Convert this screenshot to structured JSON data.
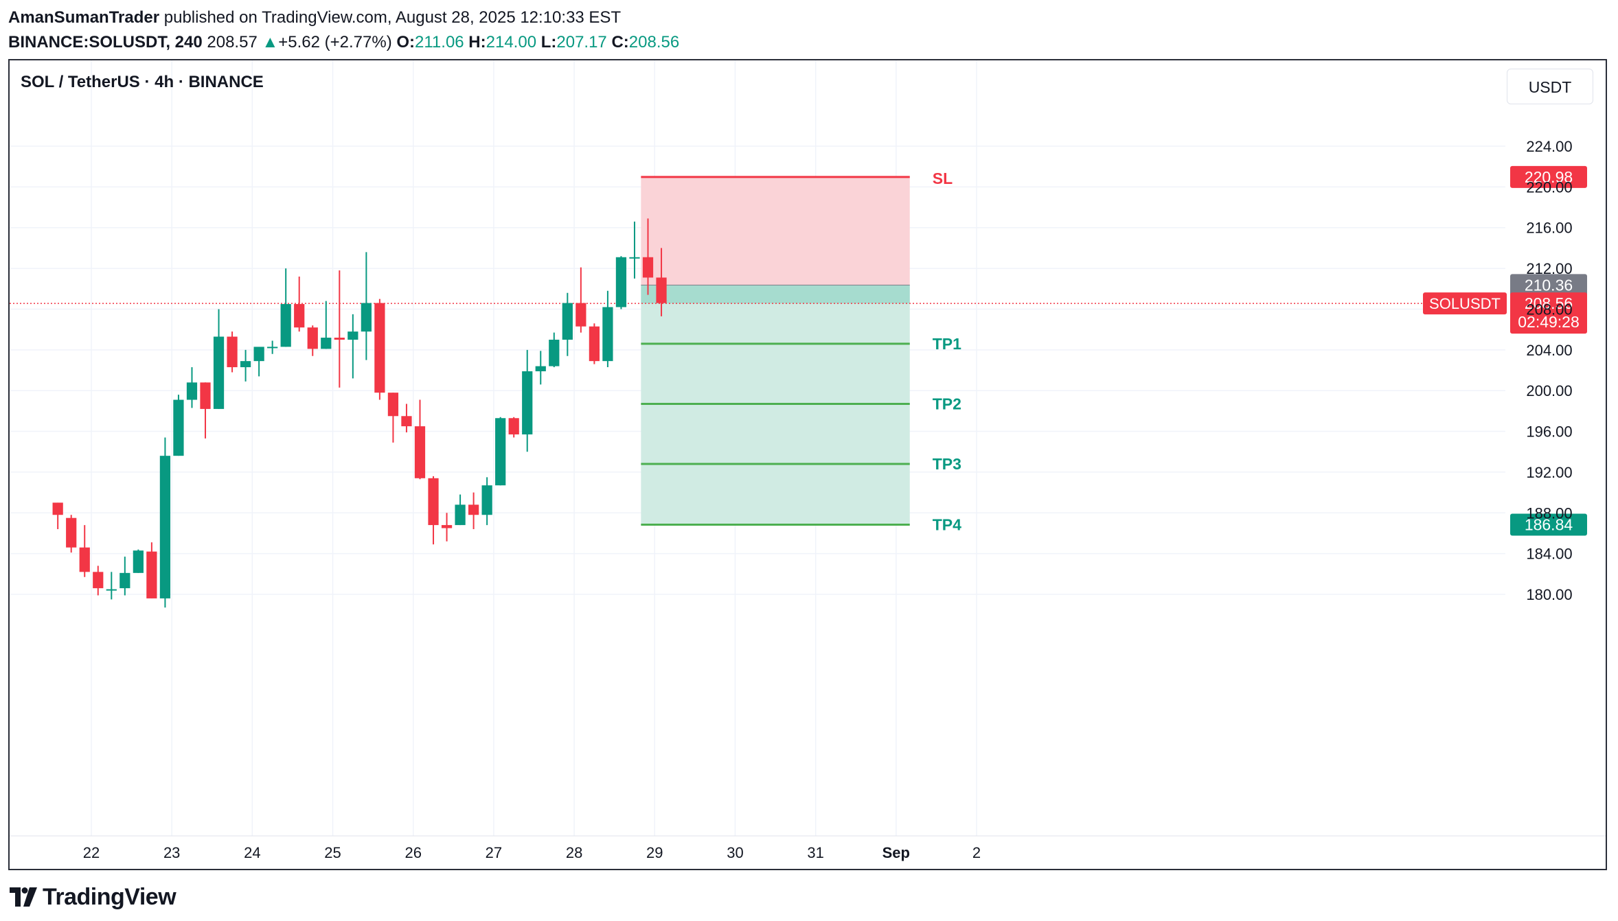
{
  "header": {
    "line1_user": "AmanSumanTrader",
    "line1_rest": " published on TradingView.com, August 28, 2025 12:10:33 EST",
    "symbol": "BINANCE:SOLUSDT, 240",
    "last": " 208.57 ",
    "change": "+5.62 (+2.77%)",
    "o_label": " O:",
    "o_val": "211.06",
    "h_label": " H:",
    "h_val": "214.00",
    "l_label": " L:",
    "l_val": "207.17",
    "c_label": " C:",
    "c_val": "208.56"
  },
  "chart": {
    "title": "SOL / TetherUS · 4h · BINANCE",
    "currency_button": "USDT",
    "last_price_symbol": "SOLUSDT",
    "last_price": "208.56",
    "countdown": "02:49:28"
  },
  "footer": {
    "brand": "TradingView"
  },
  "colors": {
    "up": "#089981",
    "down": "#f23645",
    "sl_zone": "#fad3d7",
    "tp_zone": "#d0ebe3",
    "entry_zone": "#a6dccf",
    "tp_line": "#4caf50",
    "entry_badge": "#787b86"
  },
  "chart_data": {
    "type": "candlestick",
    "title": "SOL / TetherUS · 4h · BINANCE",
    "ylim": [
      177.5,
      226
    ],
    "y_ticks": [
      "180.00",
      "184.00",
      "188.00",
      "192.00",
      "196.00",
      "200.00",
      "204.00",
      "208.00",
      "212.00",
      "216.00",
      "220.00",
      "224.00"
    ],
    "x_tick_labels": [
      {
        "label": "22",
        "day": 22
      },
      {
        "label": "23",
        "day": 23
      },
      {
        "label": "24",
        "day": 24
      },
      {
        "label": "25",
        "day": 25
      },
      {
        "label": "26",
        "day": 26
      },
      {
        "label": "27",
        "day": 27
      },
      {
        "label": "28",
        "day": 28
      },
      {
        "label": "29",
        "day": 29
      },
      {
        "label": "30",
        "day": 30
      },
      {
        "label": "31",
        "day": 31
      },
      {
        "label": "Sep",
        "day": 32
      },
      {
        "label": "2",
        "day": 33
      }
    ],
    "candle_start_day": 21.5,
    "candles_per_day": 6,
    "candles": [
      [
        189.0,
        189.0,
        186.4,
        187.8
      ],
      [
        187.5,
        187.8,
        184.1,
        184.6
      ],
      [
        184.6,
        186.8,
        181.7,
        182.2
      ],
      [
        182.2,
        182.8,
        179.9,
        180.6
      ],
      [
        180.4,
        182.2,
        179.5,
        180.5
      ],
      [
        180.6,
        183.7,
        179.9,
        182.1
      ],
      [
        182.1,
        184.4,
        182.1,
        184.3
      ],
      [
        184.2,
        185.1,
        179.6,
        179.6
      ],
      [
        179.6,
        195.4,
        178.7,
        193.6
      ],
      [
        193.6,
        199.6,
        193.6,
        199.1
      ],
      [
        199.1,
        202.3,
        198.3,
        200.8
      ],
      [
        200.8,
        200.8,
        195.3,
        198.2
      ],
      [
        198.2,
        208.0,
        198.2,
        205.3
      ],
      [
        205.3,
        205.8,
        201.8,
        202.3
      ],
      [
        202.3,
        204.0,
        200.9,
        202.9
      ],
      [
        202.9,
        204.0,
        201.4,
        204.3
      ],
      [
        204.3,
        204.9,
        203.6,
        204.3
      ],
      [
        204.3,
        212.0,
        204.3,
        208.5
      ],
      [
        208.5,
        211.2,
        205.8,
        206.2
      ],
      [
        206.2,
        206.4,
        203.4,
        204.1
      ],
      [
        204.1,
        208.8,
        204.1,
        205.2
      ],
      [
        205.2,
        211.8,
        200.3,
        205.0
      ],
      [
        205.0,
        207.5,
        201.2,
        205.8
      ],
      [
        205.8,
        213.6,
        203.0,
        208.6
      ],
      [
        208.6,
        209.0,
        199.1,
        199.8
      ],
      [
        199.8,
        199.8,
        194.9,
        197.5
      ],
      [
        197.5,
        198.7,
        195.9,
        196.5
      ],
      [
        196.5,
        199.1,
        191.3,
        191.4
      ],
      [
        191.4,
        191.6,
        184.9,
        186.8
      ],
      [
        186.8,
        188.0,
        185.2,
        186.5
      ],
      [
        186.8,
        189.8,
        186.8,
        188.8
      ],
      [
        188.8,
        190.0,
        186.4,
        187.8
      ],
      [
        187.8,
        191.5,
        186.8,
        190.7
      ],
      [
        190.7,
        197.4,
        190.7,
        197.3
      ],
      [
        197.3,
        197.4,
        195.4,
        195.7
      ],
      [
        195.7,
        204.0,
        194.0,
        201.9
      ],
      [
        201.9,
        203.9,
        200.6,
        202.4
      ],
      [
        202.4,
        205.7,
        202.3,
        205.0
      ],
      [
        205.0,
        209.6,
        203.4,
        208.6
      ],
      [
        208.6,
        212.1,
        205.7,
        206.3
      ],
      [
        206.3,
        206.6,
        202.6,
        202.9
      ],
      [
        202.9,
        209.8,
        202.3,
        208.2
      ],
      [
        208.2,
        213.2,
        208.0,
        213.1
      ],
      [
        213.1,
        216.6,
        211.0,
        213.1
      ],
      [
        213.1,
        216.9,
        209.4,
        211.1
      ],
      [
        211.1,
        214.0,
        207.3,
        208.6
      ]
    ],
    "last_price": 208.56,
    "position": {
      "type": "short",
      "entry": 210.36,
      "stop_loss": 220.98,
      "targets": [
        {
          "label": "TP1",
          "price": 204.6
        },
        {
          "label": "TP2",
          "price": 198.7
        },
        {
          "label": "TP3",
          "price": 192.8
        },
        {
          "label": "TP4",
          "price": 186.84
        }
      ],
      "start_day": 28.83,
      "end_day": 32.17,
      "sl_label": "SL",
      "sl_badge": "220.98",
      "entry_badge": "210.36",
      "tp4_badge": "186.84"
    },
    "grid": true,
    "price_axis": "right"
  }
}
